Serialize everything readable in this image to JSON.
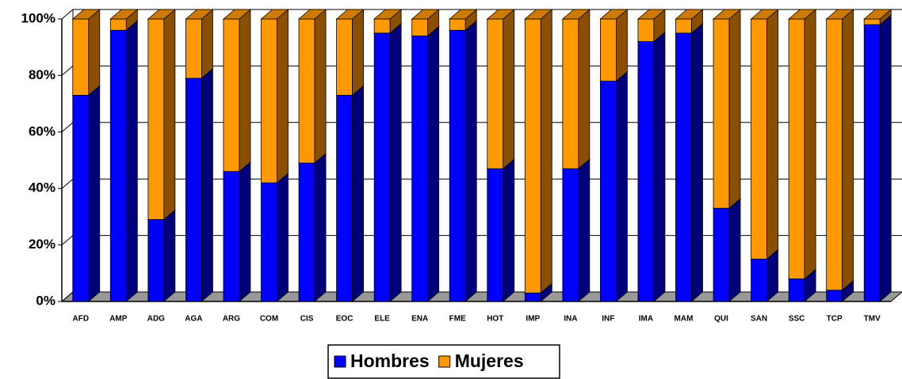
{
  "chart_data": {
    "type": "bar",
    "stacked": true,
    "three_d": true,
    "categories": [
      "AFD",
      "AMP",
      "ADG",
      "AGA",
      "ARG",
      "COM",
      "CIS",
      "EOC",
      "ELE",
      "ENA",
      "FME",
      "HOT",
      "IMP",
      "INA",
      "INF",
      "IMA",
      "MAM",
      "QUI",
      "SAN",
      "SSC",
      "TCP",
      "TMV"
    ],
    "series": [
      {
        "name": "Hombres",
        "color": "#0000ff",
        "side": "#00007a",
        "top": "#3333cc",
        "values": [
          73,
          96,
          29,
          79,
          46,
          42,
          49,
          73,
          95,
          94,
          96,
          47,
          3,
          47,
          78,
          92,
          95,
          33,
          15,
          8,
          4,
          98
        ]
      },
      {
        "name": "Mujeres",
        "color": "#ff9900",
        "side": "#8a4f00",
        "top": "#cc7a00",
        "values": [
          27,
          4,
          71,
          21,
          54,
          58,
          51,
          27,
          5,
          6,
          4,
          53,
          97,
          53,
          22,
          8,
          5,
          67,
          85,
          92,
          96,
          2
        ]
      }
    ],
    "ylim": [
      0,
      100
    ],
    "yticks": [
      {
        "value": 0,
        "label": "0%"
      },
      {
        "value": 20,
        "label": "20%"
      },
      {
        "value": 40,
        "label": "40%"
      },
      {
        "value": 60,
        "label": "60%"
      },
      {
        "value": 80,
        "label": "80%"
      },
      {
        "value": 100,
        "label": "100%"
      }
    ],
    "grid": true,
    "legend": "bottom"
  }
}
